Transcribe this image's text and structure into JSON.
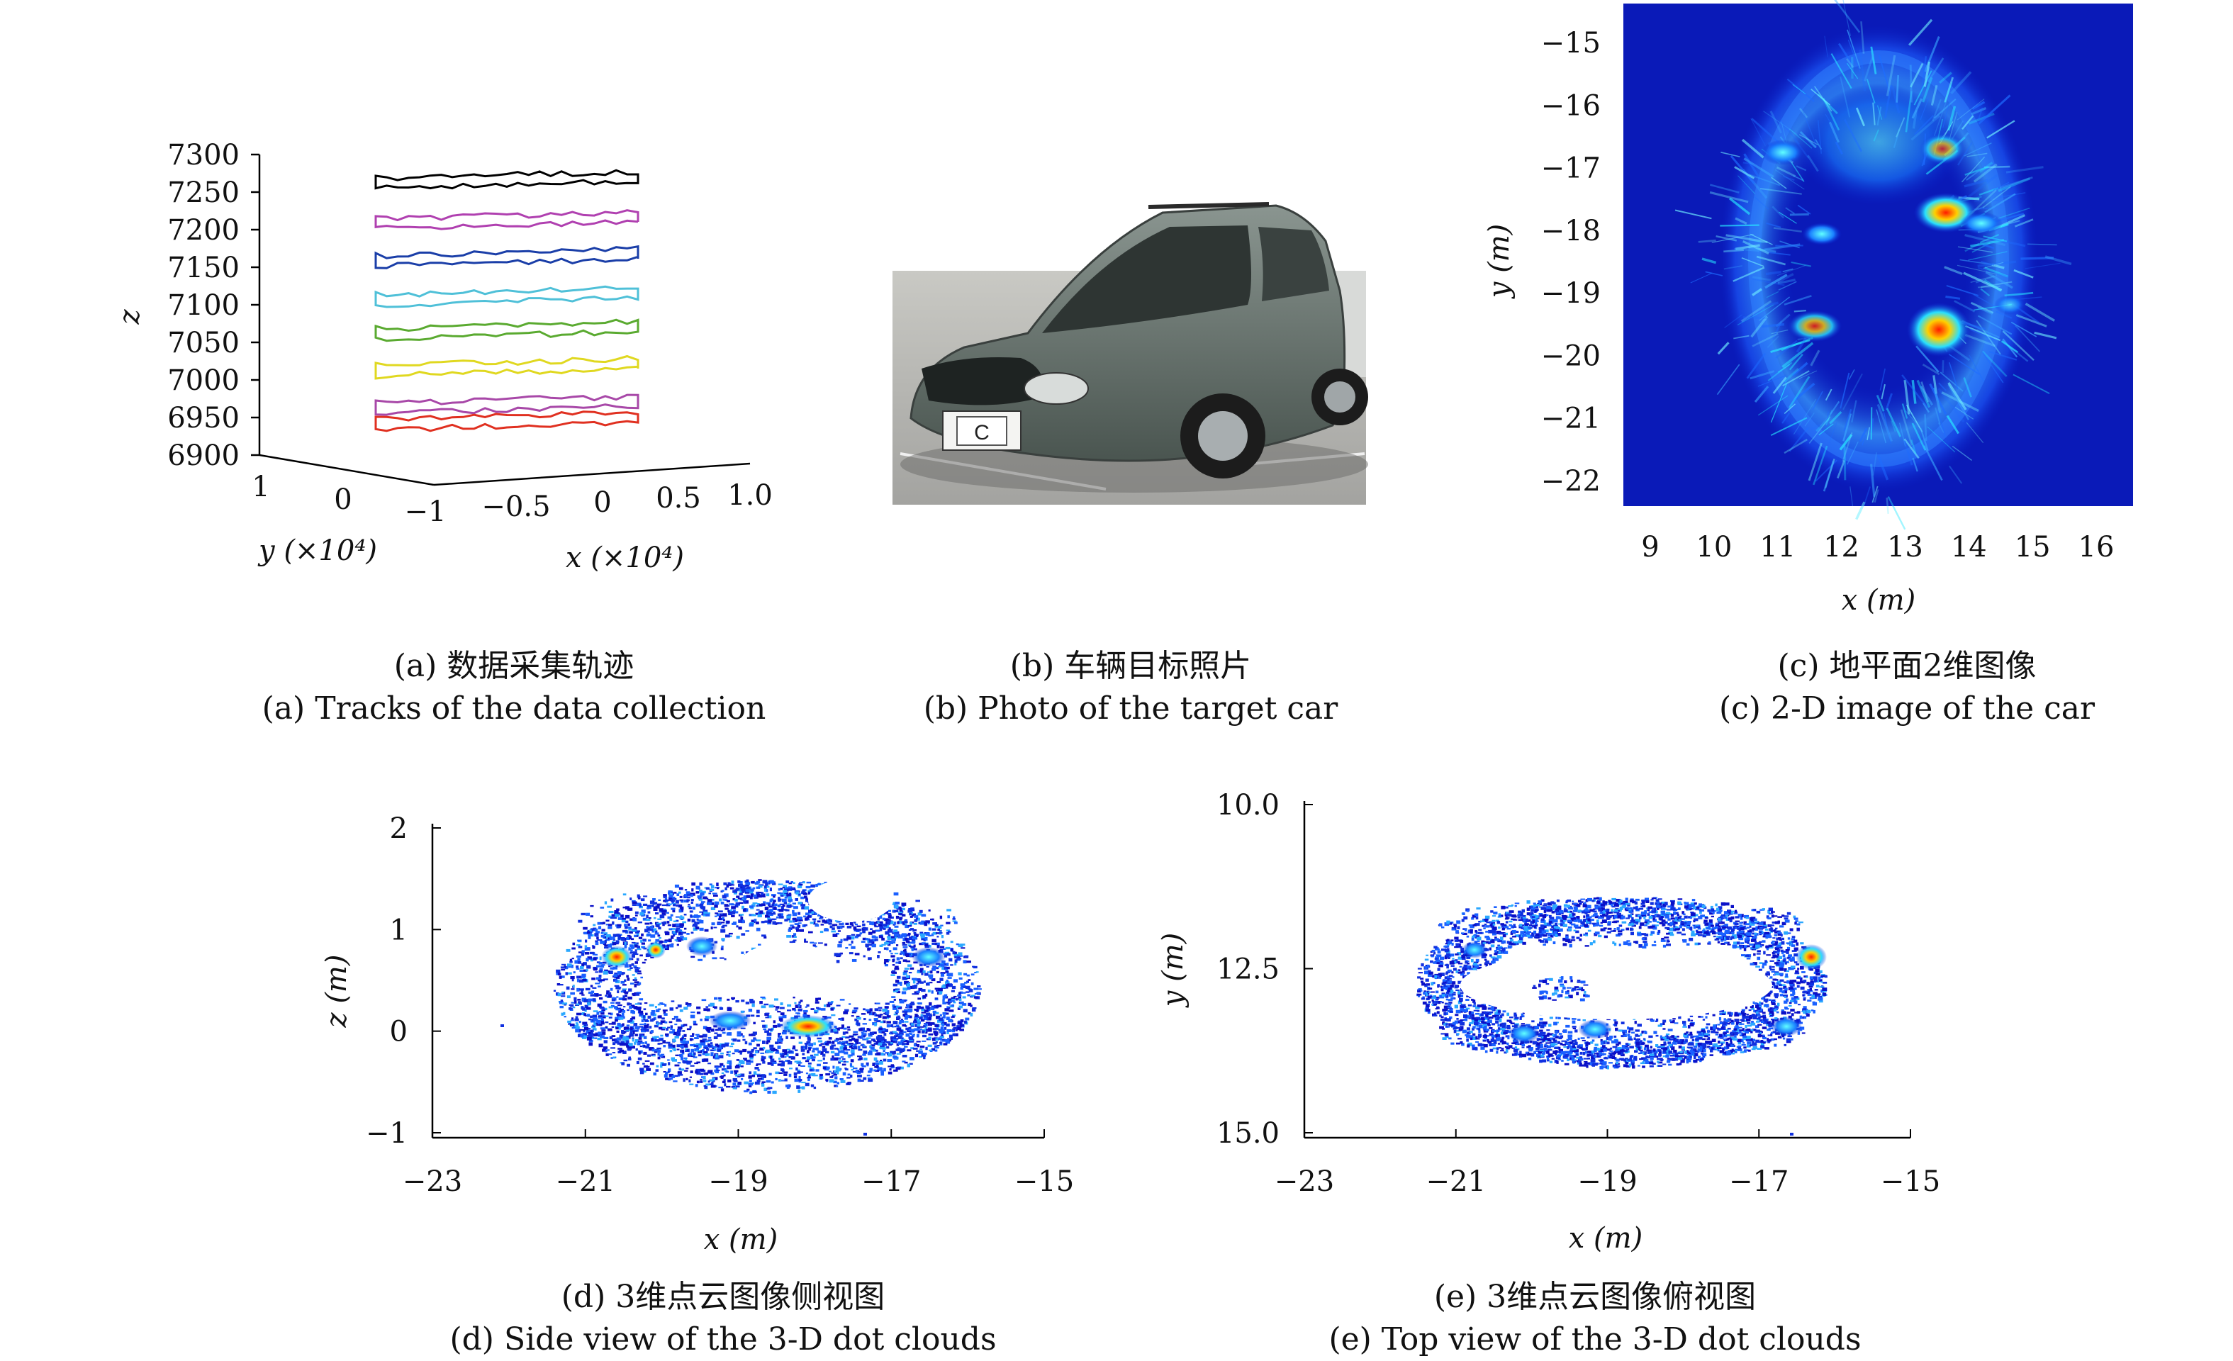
{
  "panels": {
    "a": {
      "caption_cn": "(a) 数据采集轨迹",
      "caption_en": "(a) Tracks of the data collection",
      "z_label": "z",
      "z_ticks": [
        "7300",
        "7250",
        "7200",
        "7150",
        "7100",
        "7050",
        "7000",
        "6950",
        "6900"
      ],
      "y_label": "y (×10⁴)",
      "y_ticks": [
        "1",
        "0",
        "−1"
      ],
      "x_label": "x (×10⁴)",
      "x_ticks": [
        "−0.5",
        "0",
        "0.5",
        "1.0"
      ],
      "track_colors": [
        "#000000",
        "#b040b0",
        "#1a3ea8",
        "#4fc0d8",
        "#5aaa30",
        "#e0d820",
        "#a848a8",
        "#e03020"
      ]
    },
    "b": {
      "caption_cn": "(b) 车辆目标照片",
      "caption_en": "(b) Photo of the target car",
      "plate_text": "C"
    },
    "c": {
      "caption_cn": "(c) 地平面2维图像",
      "caption_en": "(c) 2-D image of the car",
      "x_label": "x (m)",
      "y_label": "y (m)",
      "x_ticks": [
        "9",
        "10",
        "11",
        "12",
        "13",
        "14",
        "15",
        "16"
      ],
      "y_ticks": [
        "−15",
        "−16",
        "−17",
        "−18",
        "−19",
        "−20",
        "−21",
        "−22"
      ]
    },
    "d": {
      "caption_cn": "(d) 3维点云图像侧视图",
      "caption_en": "(d) Side view of the 3-D dot clouds",
      "x_label": "x (m)",
      "y_label": "z (m)",
      "x_ticks": [
        "−23",
        "−21",
        "−19",
        "−17",
        "−15"
      ],
      "y_ticks": [
        "2",
        "1",
        "0",
        "−1"
      ]
    },
    "e": {
      "caption_cn": "(e) 3维点云图像俯视图",
      "caption_en": "(e) Top view of the 3-D dot clouds",
      "x_label": "x (m)",
      "y_label": "y (m)",
      "x_ticks": [
        "−23",
        "−21",
        "−19",
        "−17",
        "−15"
      ],
      "y_ticks": [
        "10.0",
        "12.5",
        "15.0"
      ]
    }
  }
}
